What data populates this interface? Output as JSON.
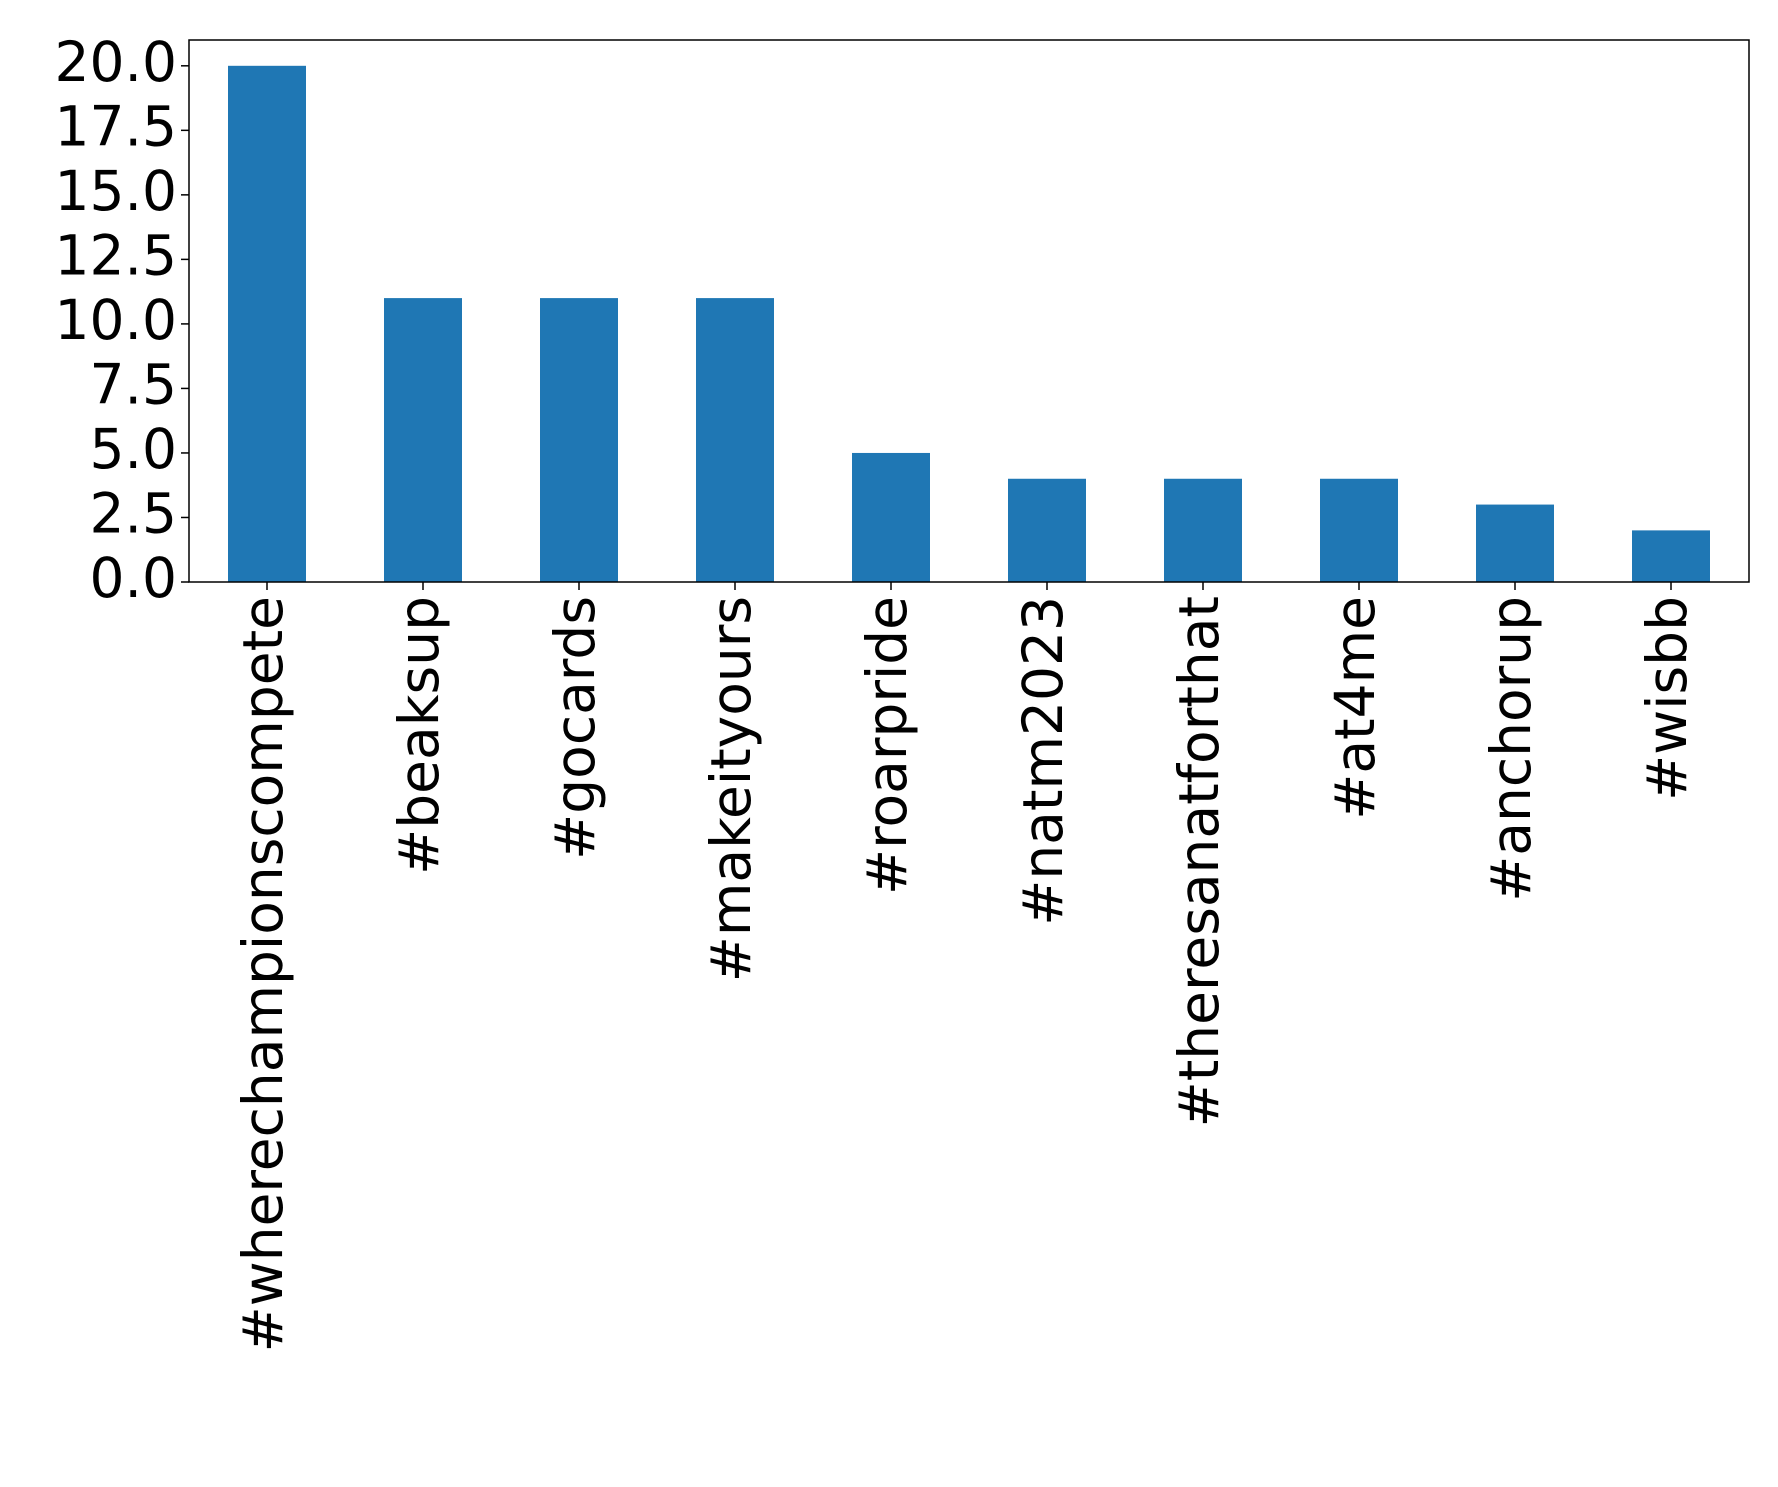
{
  "chart_data": {
    "type": "bar",
    "categories": [
      "#wherechampionscompete",
      "#beaksup",
      "#gocards",
      "#makeityours",
      "#roarpride",
      "#natm2023",
      "#theresanatforthat",
      "#at4me",
      "#anchorup",
      "#wisbb"
    ],
    "values": [
      20,
      11,
      11,
      11,
      5,
      4,
      4,
      4,
      3,
      2
    ],
    "color": "#1f77b4",
    "ylim": [
      0,
      21
    ],
    "yticks": [
      {
        "value": 0,
        "label": "0.0"
      },
      {
        "value": 2.5,
        "label": "2.5"
      },
      {
        "value": 5,
        "label": "5.0"
      },
      {
        "value": 7.5,
        "label": "7.5"
      },
      {
        "value": 10,
        "label": "10.0"
      },
      {
        "value": 12.5,
        "label": "12.5"
      },
      {
        "value": 15,
        "label": "15.0"
      },
      {
        "value": 17.5,
        "label": "17.5"
      },
      {
        "value": 20,
        "label": "20.0"
      }
    ],
    "grid": false
  }
}
